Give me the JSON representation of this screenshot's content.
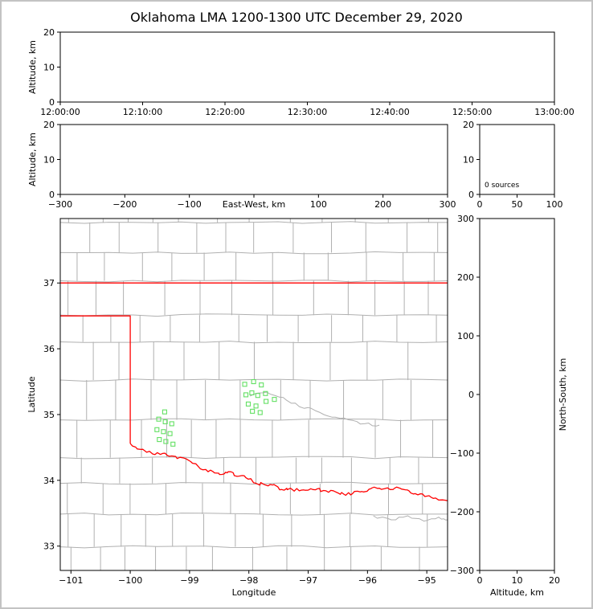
{
  "figure": {
    "title": "Oklahoma LMA 1200-1300 UTC December 29, 2020"
  },
  "colors": {
    "background": "#ffffff",
    "frame_border": "#c3c3c3",
    "axis": "#000000",
    "county_lines": "#b0b0b0",
    "state_border": "#ff0000",
    "station_marker": "#63e063"
  },
  "chart_data": [
    {
      "id": "time_height_panel",
      "type": "scatter",
      "ylabel": "Altitude, km",
      "yticks": [
        0,
        10,
        20
      ],
      "ylim": [
        0,
        20
      ],
      "xtick_labels": [
        "12:00:00",
        "12:10:00",
        "12:20:00",
        "12:30:00",
        "12:40:00",
        "12:50:00",
        "13:00:00"
      ],
      "points": []
    },
    {
      "id": "ew_height_panel",
      "type": "scatter",
      "xlabel": "East-West, km",
      "ylabel": "Altitude, km",
      "xticks": [
        -300,
        -200,
        -100,
        100,
        200,
        300
      ],
      "xlim": [
        -300,
        300
      ],
      "yticks": [
        0,
        10,
        20
      ],
      "ylim": [
        0,
        20
      ],
      "points": []
    },
    {
      "id": "alt_histogram_panel",
      "type": "histogram",
      "annotation": "0 sources",
      "xticks": [
        0,
        50,
        100
      ],
      "xlim": [
        0,
        100
      ],
      "yticks": [
        0,
        10,
        20
      ],
      "ylim": [
        0,
        20
      ],
      "points": []
    },
    {
      "id": "plan_view_panel",
      "type": "scatter",
      "xlabel": "Longitude",
      "ylabel": "Latitude",
      "xticks": [
        -101,
        -100,
        -99,
        -98,
        -97,
        -96,
        -95
      ],
      "xlim": [
        -101.18,
        -94.65
      ],
      "yticks": [
        33,
        34,
        35,
        36,
        37
      ],
      "ylim": [
        32.63,
        37.98
      ],
      "series": [
        {
          "name": "lma-stations",
          "marker": "open-square",
          "color": "#63e063",
          "points": [
            [
              -99.42,
              35.04
            ],
            [
              -99.52,
              34.93
            ],
            [
              -99.41,
              34.89
            ],
            [
              -99.3,
              34.86
            ],
            [
              -99.55,
              34.77
            ],
            [
              -99.44,
              34.74
            ],
            [
              -99.33,
              34.71
            ],
            [
              -99.51,
              34.62
            ],
            [
              -99.4,
              34.59
            ],
            [
              -99.28,
              34.55
            ],
            [
              -98.07,
              35.46
            ],
            [
              -97.92,
              35.5
            ],
            [
              -97.79,
              35.45
            ],
            [
              -98.05,
              35.3
            ],
            [
              -97.95,
              35.33
            ],
            [
              -97.85,
              35.29
            ],
            [
              -97.72,
              35.32
            ],
            [
              -98.01,
              35.16
            ],
            [
              -97.88,
              35.13
            ],
            [
              -97.71,
              35.2
            ],
            [
              -97.57,
              35.23
            ],
            [
              -97.94,
              35.05
            ],
            [
              -97.81,
              35.03
            ]
          ]
        }
      ],
      "state_boundary_polylines": [
        {
          "name": "kansas-oklahoma-border",
          "style": "straight",
          "points": [
            [
              -101.18,
              37.0
            ],
            [
              -94.65,
              37.0
            ]
          ]
        },
        {
          "name": "panhandle-border",
          "style": "straight",
          "points": [
            [
              -101.18,
              36.5
            ],
            [
              -100.0,
              36.5
            ],
            [
              -100.0,
              34.56
            ]
          ]
        },
        {
          "name": "red-river-border",
          "style": "meander",
          "points": [
            [
              -100.0,
              34.56
            ],
            [
              -99.82,
              34.47
            ],
            [
              -99.62,
              34.4
            ],
            [
              -99.45,
              34.41
            ],
            [
              -99.3,
              34.37
            ],
            [
              -99.1,
              34.34
            ],
            [
              -98.95,
              34.26
            ],
            [
              -98.78,
              34.16
            ],
            [
              -98.6,
              34.13
            ],
            [
              -98.45,
              34.09
            ],
            [
              -98.35,
              34.13
            ],
            [
              -98.2,
              34.06
            ],
            [
              -98.05,
              34.04
            ],
            [
              -97.9,
              33.96
            ],
            [
              -97.75,
              33.94
            ],
            [
              -97.6,
              33.93
            ],
            [
              -97.45,
              33.86
            ],
            [
              -97.3,
              33.88
            ],
            [
              -97.15,
              33.84
            ],
            [
              -97.0,
              33.85
            ],
            [
              -96.85,
              33.87
            ],
            [
              -96.7,
              33.84
            ],
            [
              -96.55,
              33.83
            ],
            [
              -96.4,
              33.79
            ],
            [
              -96.25,
              33.8
            ],
            [
              -96.1,
              33.83
            ],
            [
              -95.95,
              33.87
            ],
            [
              -95.8,
              33.88
            ],
            [
              -95.62,
              33.86
            ],
            [
              -95.45,
              33.88
            ],
            [
              -95.3,
              33.84
            ],
            [
              -95.15,
              33.78
            ],
            [
              -95.0,
              33.76
            ],
            [
              -94.85,
              33.73
            ],
            [
              -94.65,
              33.69
            ]
          ]
        }
      ],
      "river_polylines": [
        [
          [
            -97.98,
            35.28
          ],
          [
            -97.7,
            35.34
          ],
          [
            -97.42,
            35.26
          ],
          [
            -97.15,
            35.12
          ],
          [
            -96.88,
            35.06
          ],
          [
            -96.6,
            34.96
          ],
          [
            -96.32,
            34.92
          ],
          [
            -96.05,
            34.86
          ],
          [
            -95.8,
            34.84
          ]
        ],
        [
          [
            -95.9,
            33.46
          ],
          [
            -95.6,
            33.4
          ],
          [
            -95.32,
            33.46
          ],
          [
            -95.05,
            33.38
          ],
          [
            -94.8,
            33.44
          ],
          [
            -94.65,
            33.4
          ]
        ]
      ]
    },
    {
      "id": "ns_height_panel",
      "type": "scatter",
      "xlabel": "Altitude, km",
      "ylabel": "North-South, km",
      "xticks": [
        0,
        10,
        20
      ],
      "xlim": [
        0,
        20
      ],
      "yticks": [
        300,
        200,
        100,
        0,
        -100,
        -200,
        -300
      ],
      "ylim": [
        -300,
        300
      ],
      "points": []
    }
  ]
}
